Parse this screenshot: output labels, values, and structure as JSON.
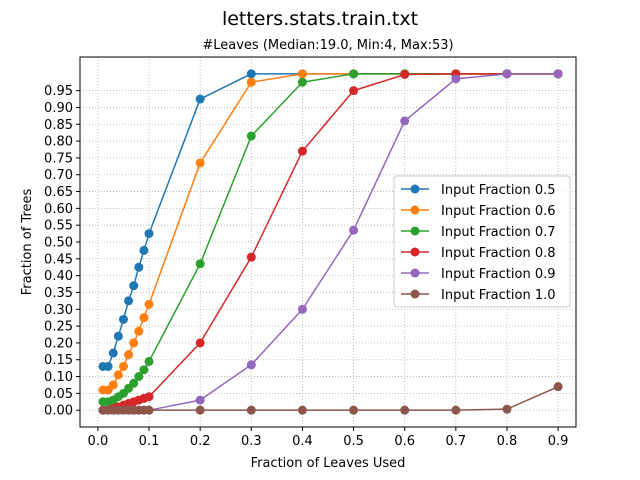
{
  "figure": {
    "suptitle": "letters.stats.train.txt"
  },
  "chart_data": {
    "type": "line",
    "title": "#Leaves (Median:19.0, Min:4, Max:53)",
    "xlabel": "Fraction of Leaves Used",
    "ylabel": "Fraction of Trees",
    "xlim": [
      -0.035,
      0.935
    ],
    "ylim": [
      -0.05,
      1.05
    ],
    "xticks": [
      0.0,
      0.1,
      0.2,
      0.3,
      0.4,
      0.5,
      0.6,
      0.7,
      0.8,
      0.9
    ],
    "xtick_labels": [
      "0.0",
      "0.1",
      "0.2",
      "0.3",
      "0.4",
      "0.5",
      "0.6",
      "0.7",
      "0.8",
      "0.9"
    ],
    "yticks": [
      0.0,
      0.05,
      0.1,
      0.15,
      0.2,
      0.25,
      0.3,
      0.35,
      0.4,
      0.45,
      0.5,
      0.55,
      0.6,
      0.65,
      0.7,
      0.75,
      0.8,
      0.85,
      0.9,
      0.95
    ],
    "ytick_labels": [
      "0.00",
      "0.05",
      "0.10",
      "0.15",
      "0.20",
      "0.25",
      "0.30",
      "0.35",
      "0.40",
      "0.45",
      "0.50",
      "0.55",
      "0.60",
      "0.65",
      "0.70",
      "0.75",
      "0.80",
      "0.85",
      "0.90",
      "0.95"
    ],
    "grid": true,
    "legend_position": "center-right",
    "series": [
      {
        "name": "Input Fraction 0.5",
        "color": "#1f77b4",
        "x": [
          0.01,
          0.02,
          0.03,
          0.04,
          0.05,
          0.06,
          0.07,
          0.08,
          0.09,
          0.1,
          0.2,
          0.3,
          0.4,
          0.5,
          0.6,
          0.7,
          0.8,
          0.9
        ],
        "y": [
          0.13,
          0.13,
          0.17,
          0.22,
          0.27,
          0.325,
          0.37,
          0.425,
          0.475,
          0.525,
          0.925,
          1.0,
          1.0,
          1.0,
          1.0,
          1.0,
          1.0,
          1.0
        ]
      },
      {
        "name": "Input Fraction 0.6",
        "color": "#ff7f0e",
        "x": [
          0.01,
          0.02,
          0.03,
          0.04,
          0.05,
          0.06,
          0.07,
          0.08,
          0.09,
          0.1,
          0.2,
          0.3,
          0.4,
          0.5,
          0.6,
          0.7,
          0.8,
          0.9
        ],
        "y": [
          0.06,
          0.06,
          0.075,
          0.105,
          0.13,
          0.165,
          0.2,
          0.235,
          0.275,
          0.315,
          0.735,
          0.975,
          1.0,
          1.0,
          1.0,
          1.0,
          1.0,
          1.0
        ]
      },
      {
        "name": "Input Fraction 0.7",
        "color": "#2ca02c",
        "x": [
          0.01,
          0.02,
          0.03,
          0.04,
          0.05,
          0.06,
          0.07,
          0.08,
          0.09,
          0.1,
          0.2,
          0.3,
          0.4,
          0.5,
          0.6,
          0.7,
          0.8,
          0.9
        ],
        "y": [
          0.025,
          0.025,
          0.03,
          0.04,
          0.05,
          0.065,
          0.08,
          0.1,
          0.12,
          0.145,
          0.435,
          0.815,
          0.975,
          1.0,
          1.0,
          1.0,
          1.0,
          1.0
        ]
      },
      {
        "name": "Input Fraction 0.8",
        "color": "#d62728",
        "x": [
          0.01,
          0.02,
          0.03,
          0.04,
          0.05,
          0.06,
          0.07,
          0.08,
          0.09,
          0.1,
          0.2,
          0.3,
          0.4,
          0.5,
          0.6,
          0.7,
          0.8,
          0.9
        ],
        "y": [
          0.0,
          0.0,
          0.005,
          0.01,
          0.015,
          0.02,
          0.025,
          0.03,
          0.035,
          0.04,
          0.2,
          0.455,
          0.77,
          0.95,
          0.998,
          1.0,
          1.0,
          1.0
        ]
      },
      {
        "name": "Input Fraction 0.9",
        "color": "#9467bd",
        "x": [
          0.01,
          0.02,
          0.03,
          0.04,
          0.05,
          0.06,
          0.07,
          0.08,
          0.09,
          0.1,
          0.2,
          0.3,
          0.4,
          0.5,
          0.6,
          0.7,
          0.8,
          0.9
        ],
        "y": [
          0.0,
          0.0,
          0.0,
          0.0,
          0.0,
          0.0,
          0.0,
          0.0,
          0.0,
          0.0,
          0.03,
          0.135,
          0.3,
          0.535,
          0.86,
          0.985,
          1.0,
          1.0
        ]
      },
      {
        "name": "Input Fraction 1.0",
        "color": "#8c564b",
        "x": [
          0.01,
          0.02,
          0.03,
          0.04,
          0.05,
          0.06,
          0.07,
          0.08,
          0.09,
          0.1,
          0.2,
          0.3,
          0.4,
          0.5,
          0.6,
          0.7,
          0.8,
          0.9
        ],
        "y": [
          0.0,
          0.0,
          0.0,
          0.0,
          0.0,
          0.0,
          0.0,
          0.0,
          0.0,
          0.0,
          0.0,
          0.0,
          0.0,
          0.0,
          0.0,
          0.0,
          0.003,
          0.07
        ]
      }
    ]
  }
}
